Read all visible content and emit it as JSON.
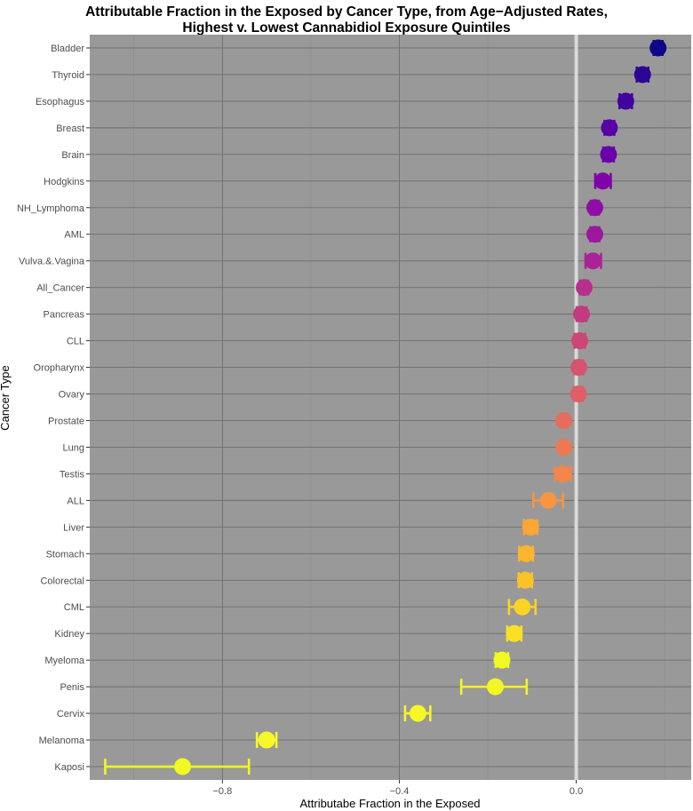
{
  "chart_data": {
    "type": "scatter",
    "title": "Attributable Fraction in the Exposed by Cancer Type, from Age−Adjusted Rates,",
    "subtitle": "Highest v. Lowest Cannabidiol Exposure Quintiles",
    "xlabel": "Attributabe Fraction in the Exposed",
    "ylabel": "Cancer Type",
    "xlim": [
      -1.1,
      0.26
    ],
    "xticks": [
      -0.8,
      -0.4,
      0.0
    ],
    "xtick_labels": [
      "−0.8",
      "−0.4",
      "0.0"
    ],
    "reference_line_x": 0.0,
    "grid": true,
    "legend": "none",
    "categories": [
      "Bladder",
      "Thyroid",
      "Esophagus",
      "Breast",
      "Brain",
      "Hodgkins",
      "NH_Lymphoma",
      "AML",
      "Vulva.&.Vagina",
      "All_Cancer",
      "Pancreas",
      "CLL",
      "Oropharynx",
      "Ovary",
      "Prostate",
      "Lung",
      "Testis",
      "ALL",
      "Liver",
      "Stomach",
      "Colorectal",
      "CML",
      "Kidney",
      "Myeloma",
      "Penis",
      "Cervix",
      "Melanoma",
      "Kaposi"
    ],
    "estimate": [
      0.185,
      0.15,
      0.112,
      0.075,
      0.073,
      0.06,
      0.042,
      0.042,
      0.038,
      0.018,
      0.012,
      0.008,
      0.006,
      0.005,
      -0.028,
      -0.028,
      -0.03,
      -0.063,
      -0.103,
      -0.113,
      -0.115,
      -0.122,
      -0.14,
      -0.168,
      -0.183,
      -0.358,
      -0.7,
      -0.89
    ],
    "ci_lower": [
      0.175,
      0.137,
      0.098,
      0.064,
      0.061,
      0.043,
      0.033,
      0.032,
      0.021,
      0.009,
      0.001,
      -0.004,
      -0.004,
      -0.005,
      -0.036,
      -0.036,
      -0.048,
      -0.097,
      -0.118,
      -0.129,
      -0.13,
      -0.152,
      -0.156,
      -0.182,
      -0.26,
      -0.387,
      -0.722,
      -1.065
    ],
    "ci_upper": [
      0.195,
      0.163,
      0.126,
      0.086,
      0.085,
      0.078,
      0.051,
      0.052,
      0.056,
      0.027,
      0.023,
      0.02,
      0.016,
      0.015,
      -0.02,
      -0.02,
      -0.012,
      -0.03,
      -0.088,
      -0.098,
      -0.1,
      -0.092,
      -0.124,
      -0.154,
      -0.112,
      -0.33,
      -0.678,
      -0.74
    ],
    "colors": [
      "#0d0887",
      "#2c0594",
      "#43039e",
      "#5901a5",
      "#6a00a8",
      "#7e03a8",
      "#8f0da4",
      "#9c179e",
      "#aa2395",
      "#b6308b",
      "#c13b82",
      "#cc4778",
      "#d5546e",
      "#de5f65",
      "#e66c5c",
      "#ed7953",
      "#f3864a",
      "#f89540",
      "#fca636",
      "#fdb42f",
      "#fec229",
      "#fcd225",
      "#f8e125",
      "#f0f921",
      "#f2f624",
      "#f5f727",
      "#f7f82a",
      "#f0f921"
    ]
  }
}
